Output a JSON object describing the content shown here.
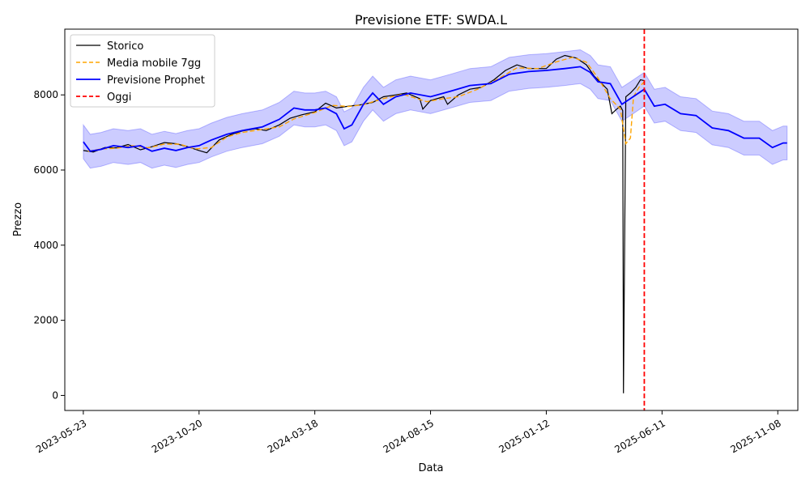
{
  "chart_data": {
    "type": "line",
    "title": "Previsione ETF: SWDA.L",
    "xlabel": "Data",
    "ylabel": "Prezzo",
    "x_tick_labels": [
      "2023-05-23",
      "2023-10-20",
      "2024-03-18",
      "2024-08-15",
      "2025-01-12",
      "2025-06-11",
      "2025-11-08"
    ],
    "x_tick_dates": [
      "2023-05-23",
      "2023-10-20",
      "2024-03-18",
      "2024-08-15",
      "2025-01-12",
      "2025-06-11",
      "2025-11-08"
    ],
    "y_ticks": [
      0,
      2000,
      4000,
      6000,
      8000
    ],
    "xlim": [
      "2023-04-29",
      "2025-12-04"
    ],
    "ylim": [
      -400,
      9750
    ],
    "legend_position": "top-left",
    "legend": [
      "Storico",
      "Media mobile 7gg",
      "Previsione Prophet",
      "Oggi"
    ],
    "colors": {
      "historical": "#000000",
      "moving_avg": "#ffa500",
      "forecast": "#0000ff",
      "band": "#0000ff",
      "today": "#ff0000"
    },
    "today": "2025-05-19",
    "series": [
      {
        "name": "Storico",
        "style": "solid",
        "points": [
          [
            "2023-05-23",
            6520
          ],
          [
            "2023-06-05",
            6480
          ],
          [
            "2023-06-20",
            6600
          ],
          [
            "2023-07-05",
            6590
          ],
          [
            "2023-07-20",
            6680
          ],
          [
            "2023-08-05",
            6540
          ],
          [
            "2023-08-20",
            6620
          ],
          [
            "2023-09-05",
            6730
          ],
          [
            "2023-09-20",
            6700
          ],
          [
            "2023-10-05",
            6620
          ],
          [
            "2023-10-20",
            6520
          ],
          [
            "2023-10-30",
            6460
          ],
          [
            "2023-11-15",
            6800
          ],
          [
            "2023-12-01",
            6950
          ],
          [
            "2023-12-15",
            7040
          ],
          [
            "2024-01-01",
            7100
          ],
          [
            "2024-01-15",
            7050
          ],
          [
            "2024-02-01",
            7200
          ],
          [
            "2024-02-15",
            7380
          ],
          [
            "2024-03-01",
            7470
          ],
          [
            "2024-03-18",
            7550
          ],
          [
            "2024-04-01",
            7780
          ],
          [
            "2024-04-15",
            7650
          ],
          [
            "2024-05-01",
            7700
          ],
          [
            "2024-05-15",
            7730
          ],
          [
            "2024-06-01",
            7800
          ],
          [
            "2024-06-15",
            7950
          ],
          [
            "2024-07-01",
            8000
          ],
          [
            "2024-07-15",
            8050
          ],
          [
            "2024-08-01",
            7900
          ],
          [
            "2024-08-05",
            7620
          ],
          [
            "2024-08-15",
            7850
          ],
          [
            "2024-09-01",
            7950
          ],
          [
            "2024-09-06",
            7750
          ],
          [
            "2024-09-20",
            8000
          ],
          [
            "2024-10-05",
            8150
          ],
          [
            "2024-10-20",
            8200
          ],
          [
            "2024-11-05",
            8400
          ],
          [
            "2024-11-20",
            8650
          ],
          [
            "2024-12-05",
            8800
          ],
          [
            "2024-12-20",
            8700
          ],
          [
            "2025-01-12",
            8700
          ],
          [
            "2025-01-25",
            8950
          ],
          [
            "2025-02-05",
            9050
          ],
          [
            "2025-02-20",
            8980
          ],
          [
            "2025-03-05",
            8800
          ],
          [
            "2025-03-15",
            8500
          ],
          [
            "2025-03-25",
            8300
          ],
          [
            "2025-04-01",
            8150
          ],
          [
            "2025-04-07",
            7500
          ],
          [
            "2025-04-12",
            7600
          ],
          [
            "2025-04-18",
            7700
          ],
          [
            "2025-04-21",
            7580
          ],
          [
            "2025-04-22",
            60
          ],
          [
            "2025-04-25",
            7950
          ],
          [
            "2025-05-01",
            8050
          ],
          [
            "2025-05-08",
            8200
          ],
          [
            "2025-05-14",
            8400
          ],
          [
            "2025-05-19",
            8380
          ]
        ]
      },
      {
        "name": "Media mobile 7gg",
        "style": "dashed",
        "points": [
          [
            "2023-05-29",
            6500
          ],
          [
            "2023-06-15",
            6560
          ],
          [
            "2023-07-05",
            6580
          ],
          [
            "2023-07-25",
            6650
          ],
          [
            "2023-08-15",
            6590
          ],
          [
            "2023-09-05",
            6690
          ],
          [
            "2023-09-25",
            6690
          ],
          [
            "2023-10-15",
            6560
          ],
          [
            "2023-11-05",
            6600
          ],
          [
            "2023-11-25",
            6880
          ],
          [
            "2023-12-15",
            7000
          ],
          [
            "2024-01-10",
            7080
          ],
          [
            "2024-02-01",
            7150
          ],
          [
            "2024-02-20",
            7360
          ],
          [
            "2024-03-18",
            7530
          ],
          [
            "2024-04-10",
            7720
          ],
          [
            "2024-05-01",
            7690
          ],
          [
            "2024-05-20",
            7740
          ],
          [
            "2024-06-15",
            7900
          ],
          [
            "2024-07-10",
            8020
          ],
          [
            "2024-08-10",
            7820
          ],
          [
            "2024-09-01",
            7900
          ],
          [
            "2024-09-20",
            7950
          ],
          [
            "2024-10-15",
            8150
          ],
          [
            "2024-11-10",
            8420
          ],
          [
            "2024-12-05",
            8720
          ],
          [
            "2025-01-01",
            8700
          ],
          [
            "2025-01-25",
            8880
          ],
          [
            "2025-02-15",
            9000
          ],
          [
            "2025-03-05",
            8870
          ],
          [
            "2025-03-20",
            8450
          ],
          [
            "2025-04-05",
            7900
          ],
          [
            "2025-04-18",
            7620
          ],
          [
            "2025-04-25",
            6700
          ],
          [
            "2025-05-01",
            6850
          ],
          [
            "2025-05-05",
            7950
          ],
          [
            "2025-05-12",
            8200
          ],
          [
            "2025-05-19",
            8350
          ]
        ]
      },
      {
        "name": "Previsione Prophet",
        "style": "solid",
        "points": [
          [
            "2023-05-23",
            6750
          ],
          [
            "2023-06-01",
            6500
          ],
          [
            "2023-06-15",
            6550
          ],
          [
            "2023-07-01",
            6650
          ],
          [
            "2023-07-20",
            6600
          ],
          [
            "2023-08-05",
            6650
          ],
          [
            "2023-08-20",
            6500
          ],
          [
            "2023-09-05",
            6580
          ],
          [
            "2023-09-20",
            6520
          ],
          [
            "2023-10-05",
            6600
          ],
          [
            "2023-10-20",
            6650
          ],
          [
            "2023-11-05",
            6800
          ],
          [
            "2023-11-25",
            6950
          ],
          [
            "2023-12-15",
            7050
          ],
          [
            "2024-01-10",
            7150
          ],
          [
            "2024-02-01",
            7350
          ],
          [
            "2024-02-20",
            7650
          ],
          [
            "2024-03-05",
            7600
          ],
          [
            "2024-03-18",
            7600
          ],
          [
            "2024-04-01",
            7650
          ],
          [
            "2024-04-15",
            7500
          ],
          [
            "2024-04-25",
            7100
          ],
          [
            "2024-05-05",
            7200
          ],
          [
            "2024-05-20",
            7750
          ],
          [
            "2024-06-01",
            8050
          ],
          [
            "2024-06-15",
            7750
          ],
          [
            "2024-07-01",
            7950
          ],
          [
            "2024-07-20",
            8050
          ],
          [
            "2024-08-15",
            7950
          ],
          [
            "2024-09-10",
            8100
          ],
          [
            "2024-10-05",
            8250
          ],
          [
            "2024-11-01",
            8300
          ],
          [
            "2024-11-25",
            8550
          ],
          [
            "2024-12-20",
            8620
          ],
          [
            "2025-01-12",
            8650
          ],
          [
            "2025-02-05",
            8700
          ],
          [
            "2025-02-25",
            8750
          ],
          [
            "2025-03-10",
            8600
          ],
          [
            "2025-03-20",
            8350
          ],
          [
            "2025-04-05",
            8300
          ],
          [
            "2025-04-20",
            7750
          ],
          [
            "2025-05-01",
            7900
          ],
          [
            "2025-05-19",
            8150
          ],
          [
            "2025-06-01",
            7700
          ],
          [
            "2025-06-15",
            7750
          ],
          [
            "2025-07-05",
            7500
          ],
          [
            "2025-07-25",
            7450
          ],
          [
            "2025-08-15",
            7120
          ],
          [
            "2025-09-05",
            7050
          ],
          [
            "2025-09-25",
            6850
          ],
          [
            "2025-10-15",
            6850
          ],
          [
            "2025-11-01",
            6600
          ],
          [
            "2025-11-15",
            6720
          ],
          [
            "2025-11-20",
            6720
          ]
        ]
      }
    ]
  }
}
